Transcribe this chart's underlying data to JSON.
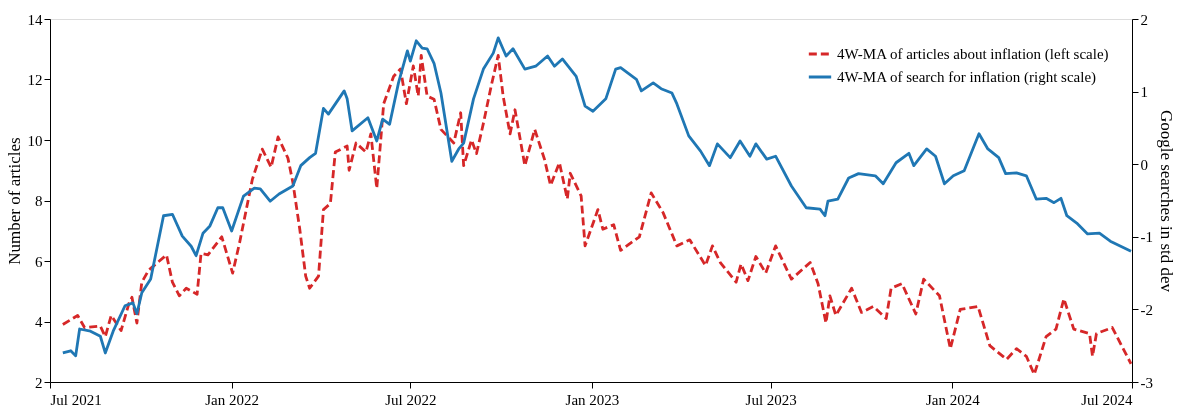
{
  "chart_data": {
    "type": "line",
    "xlim": [
      "2021-07-01",
      "2024-07-01"
    ],
    "xticks": [
      {
        "value": "2021-07-01",
        "label": "Jul 2021"
      },
      {
        "value": "2022-01-01",
        "label": "Jan 2022"
      },
      {
        "value": "2022-07-01",
        "label": "Jul 2022"
      },
      {
        "value": "2023-01-01",
        "label": "Jan 2023"
      },
      {
        "value": "2023-07-01",
        "label": "Jul 2023"
      },
      {
        "value": "2024-01-01",
        "label": "Jan 2024"
      },
      {
        "value": "2024-07-01",
        "label": "Jul 2024"
      }
    ],
    "ylabel": "Number of articles",
    "y2label": "Google searches in std dev",
    "ylim": [
      2,
      14
    ],
    "yticks": [
      2,
      4,
      6,
      8,
      10,
      12,
      14
    ],
    "y2lim": [
      -3,
      2
    ],
    "y2ticks": [
      -3,
      -2,
      -1,
      0,
      1,
      2
    ],
    "grid": false,
    "legend": "top right",
    "series": [
      {
        "name": "4W-MA of articles about inflation (left scale)",
        "color": "#d62728",
        "line_style": "dashed",
        "axis": "y",
        "x": [
          "2021-07-14",
          "2021-07-29",
          "2021-08-05",
          "2021-08-21",
          "2021-08-26",
          "2021-09-01",
          "2021-09-11",
          "2021-09-19",
          "2021-09-22",
          "2021-09-27",
          "2021-10-02",
          "2021-10-09",
          "2021-10-27",
          "2021-11-02",
          "2021-11-09",
          "2021-11-16",
          "2021-11-27",
          "2021-12-01",
          "2021-12-08",
          "2021-12-22",
          "2022-01-02",
          "2022-01-09",
          "2022-01-22",
          "2022-02-01",
          "2022-02-10",
          "2022-02-17",
          "2022-02-27",
          "2022-03-04",
          "2022-03-11",
          "2022-03-17",
          "2022-03-21",
          "2022-03-30",
          "2022-04-04",
          "2022-04-11",
          "2022-04-16",
          "2022-04-28",
          "2022-04-30",
          "2022-05-07",
          "2022-05-17",
          "2022-05-22",
          "2022-05-28",
          "2022-06-04",
          "2022-06-14",
          "2022-06-21",
          "2022-06-27",
          "2022-07-04",
          "2022-07-09",
          "2022-07-12",
          "2022-07-18",
          "2022-07-25",
          "2022-08-01",
          "2022-08-14",
          "2022-08-21",
          "2022-08-24",
          "2022-09-01",
          "2022-09-06",
          "2022-09-13",
          "2022-09-21",
          "2022-09-28",
          "2022-10-03",
          "2022-10-10",
          "2022-10-15",
          "2022-10-25",
          "2022-11-04",
          "2022-11-14",
          "2022-11-20",
          "2022-11-29",
          "2022-12-07",
          "2022-12-10",
          "2022-12-21",
          "2022-12-25",
          "2023-01-07",
          "2023-01-12",
          "2023-01-23",
          "2023-01-30",
          "2023-02-18",
          "2023-03-02",
          "2023-03-14",
          "2023-03-28",
          "2023-04-10",
          "2023-04-26",
          "2023-05-03",
          "2023-05-11",
          "2023-05-27",
          "2023-06-01",
          "2023-06-08",
          "2023-06-16",
          "2023-06-26",
          "2023-07-06",
          "2023-07-22",
          "2023-08-10",
          "2023-08-18",
          "2023-08-26",
          "2023-08-30",
          "2023-09-05",
          "2023-09-21",
          "2023-10-01",
          "2023-10-13",
          "2023-10-26",
          "2023-10-31",
          "2023-11-11",
          "2023-11-25",
          "2023-12-03",
          "2023-12-19",
          "2023-12-30",
          "2024-01-09",
          "2024-01-27",
          "2024-02-08",
          "2024-02-25",
          "2024-03-06",
          "2024-03-16",
          "2024-03-24",
          "2024-04-05",
          "2024-04-15",
          "2024-04-23",
          "2024-05-03",
          "2024-05-19",
          "2024-05-22",
          "2024-05-26",
          "2024-06-11",
          "2024-06-30"
        ],
        "values": [
          3.9,
          4.2,
          3.8,
          3.85,
          3.5,
          4.2,
          3.7,
          4.6,
          4.8,
          3.95,
          5.3,
          5.7,
          6.2,
          5.3,
          4.85,
          5.1,
          4.9,
          6.25,
          6.2,
          6.8,
          5.6,
          6.6,
          8.7,
          9.7,
          9.1,
          10.1,
          9.4,
          8.6,
          7.05,
          5.5,
          5.1,
          5.5,
          7.7,
          7.9,
          9.6,
          9.8,
          9.0,
          9.9,
          9.6,
          10.2,
          8.4,
          11.2,
          12.1,
          12.35,
          11.2,
          12.45,
          11.45,
          12.8,
          11.45,
          11.35,
          10.35,
          9.9,
          10.9,
          9.15,
          10.0,
          9.55,
          10.55,
          11.8,
          12.8,
          11.45,
          10.2,
          11.0,
          9.15,
          10.35,
          9.35,
          8.5,
          9.25,
          8.05,
          8.9,
          8.15,
          6.5,
          7.7,
          7.05,
          7.2,
          6.35,
          6.8,
          8.25,
          7.6,
          6.5,
          6.7,
          5.85,
          6.5,
          5.95,
          5.3,
          5.9,
          5.35,
          6.15,
          5.6,
          6.5,
          5.4,
          5.95,
          5.25,
          3.95,
          4.85,
          4.2,
          5.1,
          4.3,
          4.5,
          4.1,
          5.1,
          5.25,
          4.25,
          5.4,
          4.85,
          3.1,
          4.4,
          4.5,
          3.2,
          2.75,
          3.1,
          2.85,
          2.25,
          3.5,
          3.75,
          4.75,
          3.75,
          3.6,
          2.85,
          3.6,
          3.8,
          2.6
        ]
      },
      {
        "name": "4W-MA of search for inflation (right scale)",
        "color": "#1f77b4",
        "line_style": "solid",
        "axis": "y2",
        "x": [
          "2021-07-14",
          "2021-07-22",
          "2021-07-27",
          "2021-07-31",
          "2021-08-11",
          "2021-08-21",
          "2021-08-26",
          "2021-09-03",
          "2021-09-15",
          "2021-09-23",
          "2021-09-27",
          "2021-10-02",
          "2021-10-11",
          "2021-10-24",
          "2021-11-02",
          "2021-11-12",
          "2021-11-21",
          "2021-11-26",
          "2021-12-03",
          "2021-12-10",
          "2021-12-18",
          "2021-12-23",
          "2022-01-01",
          "2022-01-13",
          "2022-01-24",
          "2022-01-30",
          "2022-02-09",
          "2022-02-18",
          "2022-03-04",
          "2022-03-12",
          "2022-03-21",
          "2022-03-27",
          "2022-04-04",
          "2022-04-09",
          "2022-04-25",
          "2022-04-28",
          "2022-05-03",
          "2022-05-19",
          "2022-05-28",
          "2022-06-03",
          "2022-06-10",
          "2022-06-19",
          "2022-06-28",
          "2022-07-01",
          "2022-07-07",
          "2022-07-13",
          "2022-07-18",
          "2022-07-25",
          "2022-08-01",
          "2022-08-12",
          "2022-08-19",
          "2022-08-24",
          "2022-09-03",
          "2022-09-13",
          "2022-09-23",
          "2022-09-28",
          "2022-10-06",
          "2022-10-13",
          "2022-10-25",
          "2022-11-05",
          "2022-11-17",
          "2022-11-24",
          "2022-12-02",
          "2022-12-16",
          "2022-12-25",
          "2023-01-02",
          "2023-01-15",
          "2023-01-25",
          "2023-01-30",
          "2023-02-15",
          "2023-02-20",
          "2023-03-04",
          "2023-03-12",
          "2023-03-23",
          "2023-03-28",
          "2023-04-09",
          "2023-04-21",
          "2023-04-30",
          "2023-05-08",
          "2023-05-21",
          "2023-05-31",
          "2023-06-10",
          "2023-06-16",
          "2023-06-27",
          "2023-07-06",
          "2023-07-22",
          "2023-08-06",
          "2023-08-20",
          "2023-08-25",
          "2023-08-28",
          "2023-09-07",
          "2023-09-18",
          "2023-09-28",
          "2023-10-15",
          "2023-10-23",
          "2023-11-05",
          "2023-11-18",
          "2023-11-23",
          "2023-12-06",
          "2023-12-15",
          "2023-12-24",
          "2024-01-02",
          "2024-01-13",
          "2024-01-23",
          "2024-01-28",
          "2024-02-06",
          "2024-02-17",
          "2024-02-24",
          "2024-03-06",
          "2024-03-16",
          "2024-03-26",
          "2024-04-05",
          "2024-04-13",
          "2024-04-20",
          "2024-04-26",
          "2024-05-06",
          "2024-05-17",
          "2024-05-29",
          "2024-06-09",
          "2024-06-30"
        ],
        "values": [
          -2.6,
          -2.57,
          -2.64,
          -2.27,
          -2.3,
          -2.37,
          -2.6,
          -2.3,
          -1.95,
          -1.91,
          -2.06,
          -1.77,
          -1.58,
          -0.71,
          -0.69,
          -0.99,
          -1.13,
          -1.26,
          -0.95,
          -0.85,
          -0.6,
          -0.6,
          -0.92,
          -0.44,
          -0.33,
          -0.34,
          -0.51,
          -0.41,
          -0.3,
          -0.02,
          0.09,
          0.15,
          0.77,
          0.69,
          1.01,
          0.9,
          0.46,
          0.64,
          0.32,
          0.62,
          0.55,
          1.12,
          1.56,
          1.42,
          1.7,
          1.6,
          1.59,
          1.39,
          0.98,
          0.04,
          0.21,
          0.29,
          0.9,
          1.31,
          1.53,
          1.74,
          1.49,
          1.59,
          1.31,
          1.35,
          1.49,
          1.35,
          1.45,
          1.21,
          0.8,
          0.73,
          0.9,
          1.31,
          1.33,
          1.17,
          1.01,
          1.12,
          1.04,
          0.98,
          0.83,
          0.39,
          0.18,
          -0.02,
          0.28,
          0.09,
          0.32,
          0.11,
          0.28,
          0.07,
          0.11,
          -0.3,
          -0.6,
          -0.62,
          -0.71,
          -0.51,
          -0.48,
          -0.19,
          -0.13,
          -0.16,
          -0.27,
          0.02,
          0.15,
          -0.02,
          0.21,
          0.11,
          -0.27,
          -0.16,
          -0.09,
          0.25,
          0.42,
          0.21,
          0.09,
          -0.13,
          -0.12,
          -0.16,
          -0.48,
          -0.47,
          -0.53,
          -0.47,
          -0.71,
          -0.81,
          -0.96,
          -0.95,
          -1.06,
          -1.2
        ]
      }
    ]
  }
}
